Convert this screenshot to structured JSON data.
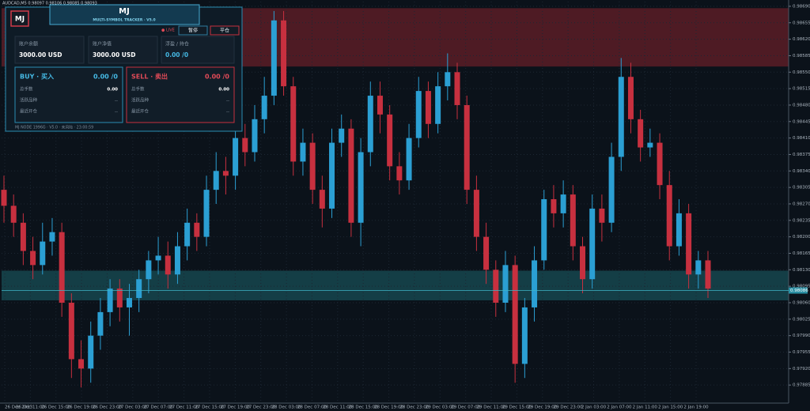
{
  "header": {
    "symbol": "AUDCAD,M5  0.98097 0.98106 0.98085 0.98093"
  },
  "panel": {
    "logo": "MJ",
    "title": "MJ",
    "subtitle": "MULTI-SYMBOL TRACKER · V5.0",
    "live": "● LIVE",
    "buttons": [
      "暂停",
      "平仓"
    ],
    "cards": [
      {
        "label": "账户余额",
        "value": "3000.00 USD"
      },
      {
        "label": "账户净值",
        "value": "3000.00 USD"
      },
      {
        "label": "浮盈 / 持仓",
        "value": "0.00 /0"
      }
    ],
    "sides": [
      {
        "title": "BUY · 买入",
        "total": "0.00 /0",
        "rows": [
          [
            "总手数",
            "0.00"
          ],
          [
            "活跃品种",
            "--"
          ],
          [
            "最近开仓",
            "--"
          ]
        ]
      },
      {
        "title": "SELL · 卖出",
        "total": "0.00 /0",
        "rows": [
          [
            "总手数",
            "0.00"
          ],
          [
            "活跃品种",
            "--"
          ],
          [
            "最近开仓",
            "--"
          ]
        ]
      }
    ],
    "footer": "MJ NODE 1996G · V5.0 · 未风险 · 23:00:59"
  },
  "chart_data": {
    "type": "candlestick",
    "bull_color": "#2b9fd3",
    "bear_color": "#c7303f",
    "grid": true,
    "ylim": [
      0.9785,
      0.987
    ],
    "yticks": [
      {
        "value": 0.9869,
        "label": "0.98690"
      },
      {
        "value": 0.98655,
        "label": "0.98655"
      },
      {
        "value": 0.9862,
        "label": "0.98620"
      },
      {
        "value": 0.98585,
        "label": "0.98585"
      },
      {
        "value": 0.9855,
        "label": "0.98550"
      },
      {
        "value": 0.98515,
        "label": "0.98515"
      },
      {
        "value": 0.9848,
        "label": "0.98480"
      },
      {
        "value": 0.98445,
        "label": "0.98445"
      },
      {
        "value": 0.9841,
        "label": "0.98410"
      },
      {
        "value": 0.98375,
        "label": "0.98375"
      },
      {
        "value": 0.9834,
        "label": "0.98340"
      },
      {
        "value": 0.98305,
        "label": "0.98305"
      },
      {
        "value": 0.9827,
        "label": "0.98270"
      },
      {
        "value": 0.98235,
        "label": "0.98235"
      },
      {
        "value": 0.982,
        "label": "0.98200"
      },
      {
        "value": 0.98165,
        "label": "0.98165"
      },
      {
        "value": 0.9813,
        "label": "0.98130"
      },
      {
        "value": 0.98095,
        "label": "0.98095"
      },
      {
        "value": 0.9806,
        "label": "0.98060"
      },
      {
        "value": 0.98025,
        "label": "0.98025"
      },
      {
        "value": 0.9799,
        "label": "0.97990"
      },
      {
        "value": 0.97955,
        "label": "0.97955"
      },
      {
        "value": 0.9792,
        "label": "0.97920"
      },
      {
        "value": 0.97885,
        "label": "0.97885"
      }
    ],
    "current_price": 0.98086,
    "zones": [
      {
        "from": 0.98562,
        "to": 0.98686,
        "color": "#5a1d27"
      },
      {
        "from": 0.98065,
        "to": 0.98128,
        "color": "#16474f"
      }
    ],
    "x_labels": [
      "26 Dec 2023",
      "26 Dec 11:00",
      "26 Dec 15:00",
      "26 Dec 19:00",
      "26 Dec 23:00",
      "27 Dec 03:00",
      "27 Dec 07:00",
      "27 Dec 11:00",
      "27 Dec 15:00",
      "27 Dec 19:00",
      "27 Dec 23:00",
      "28 Dec 03:00",
      "28 Dec 07:00",
      "28 Dec 11:00",
      "28 Dec 15:00",
      "28 Dec 19:00",
      "28 Dec 23:00",
      "29 Dec 03:00",
      "29 Dec 07:00",
      "29 Dec 11:00",
      "29 Dec 15:00",
      "29 Dec 19:00",
      "29 Dec 23:00",
      "2 Jan 03:00",
      "2 Jan 07:00",
      "2 Jan 11:00",
      "2 Jan 15:00",
      "2 Jan 19:00"
    ],
    "open": [
      0.983,
      0.98266,
      0.9823,
      0.9817,
      0.9814,
      0.9819,
      0.9821,
      0.9806,
      0.9794,
      0.9792,
      0.9799,
      0.9804,
      0.9809,
      0.9805,
      0.9807,
      0.9811,
      0.9815,
      0.9816,
      0.9812,
      0.9818,
      0.9823,
      0.982,
      0.983,
      0.9834,
      0.9833,
      0.9841,
      0.9838,
      0.9845,
      0.985,
      0.9866,
      0.9852,
      0.9836,
      0.984,
      0.983,
      0.9826,
      0.984,
      0.9843,
      0.9823,
      0.9838,
      0.985,
      0.9846,
      0.9835,
      0.9832,
      0.9841,
      0.9851,
      0.9844,
      0.9852,
      0.9855,
      0.9848,
      0.983,
      0.982,
      0.9813,
      0.9806,
      0.9814,
      0.9793,
      0.9805,
      0.9815,
      0.9828,
      0.9825,
      0.9829,
      0.9818,
      0.9811,
      0.9826,
      0.9823,
      0.9837,
      0.9854,
      0.9845,
      0.9839,
      0.984,
      0.9831,
      0.9818,
      0.9825,
      0.9812,
      0.9815
    ],
    "high": [
      0.9833,
      0.9829,
      0.9825,
      0.982,
      0.9823,
      0.9824,
      0.9823,
      0.9808,
      0.9798,
      0.9802,
      0.9807,
      0.9811,
      0.9811,
      0.981,
      0.9813,
      0.9817,
      0.982,
      0.9819,
      0.9821,
      0.9826,
      0.9825,
      0.9833,
      0.9838,
      0.9837,
      0.9845,
      0.9844,
      0.9848,
      0.9854,
      0.9868,
      0.9868,
      0.9854,
      0.9843,
      0.9842,
      0.9833,
      0.9843,
      0.9846,
      0.9845,
      0.9841,
      0.9853,
      0.9853,
      0.9848,
      0.9838,
      0.9844,
      0.9854,
      0.9853,
      0.9855,
      0.9859,
      0.9857,
      0.985,
      0.9833,
      0.9823,
      0.9815,
      0.9817,
      0.9816,
      0.9807,
      0.9818,
      0.983,
      0.9831,
      0.9832,
      0.9831,
      0.982,
      0.9829,
      0.9829,
      0.984,
      0.9858,
      0.9857,
      0.9847,
      0.9843,
      0.9842,
      0.9834,
      0.9828,
      0.9827,
      0.9817,
      0.9817
    ],
    "low": [
      0.9823,
      0.982,
      0.9814,
      0.9811,
      0.9812,
      0.9816,
      0.9803,
      0.979,
      0.9788,
      0.9789,
      0.9796,
      0.9801,
      0.9802,
      0.9799,
      0.9804,
      0.9808,
      0.9812,
      0.9809,
      0.981,
      0.9815,
      0.9817,
      0.9818,
      0.9827,
      0.9829,
      0.983,
      0.9835,
      0.9836,
      0.9842,
      0.9848,
      0.985,
      0.9833,
      0.9833,
      0.9827,
      0.9822,
      0.9824,
      0.9837,
      0.982,
      0.9818,
      0.9835,
      0.9842,
      0.9832,
      0.9829,
      0.983,
      0.9839,
      0.9841,
      0.9842,
      0.9849,
      0.9845,
      0.9827,
      0.9817,
      0.981,
      0.9803,
      0.9804,
      0.9789,
      0.979,
      0.9802,
      0.9813,
      0.9822,
      0.9822,
      0.9815,
      0.9808,
      0.9809,
      0.9819,
      0.9821,
      0.9834,
      0.9842,
      0.9836,
      0.9837,
      0.9828,
      0.9815,
      0.9816,
      0.9809,
      0.9809,
      0.9807
    ],
    "close": [
      0.98266,
      0.9823,
      0.9817,
      0.9814,
      0.9819,
      0.9821,
      0.9806,
      0.9794,
      0.9792,
      0.9799,
      0.9804,
      0.9809,
      0.9805,
      0.9807,
      0.9811,
      0.9815,
      0.9816,
      0.9812,
      0.9818,
      0.9823,
      0.982,
      0.983,
      0.9834,
      0.9833,
      0.9841,
      0.9838,
      0.9845,
      0.985,
      0.9866,
      0.9852,
      0.9836,
      0.984,
      0.983,
      0.9826,
      0.984,
      0.9843,
      0.9823,
      0.9838,
      0.985,
      0.9846,
      0.9835,
      0.9832,
      0.9841,
      0.9851,
      0.9844,
      0.9852,
      0.9855,
      0.9848,
      0.983,
      0.982,
      0.9813,
      0.9806,
      0.9814,
      0.9793,
      0.9805,
      0.9815,
      0.9828,
      0.9825,
      0.9829,
      0.9818,
      0.9811,
      0.9826,
      0.9823,
      0.9837,
      0.9854,
      0.9845,
      0.9839,
      0.984,
      0.9831,
      0.9818,
      0.9825,
      0.9812,
      0.9815,
      0.9809
    ]
  }
}
